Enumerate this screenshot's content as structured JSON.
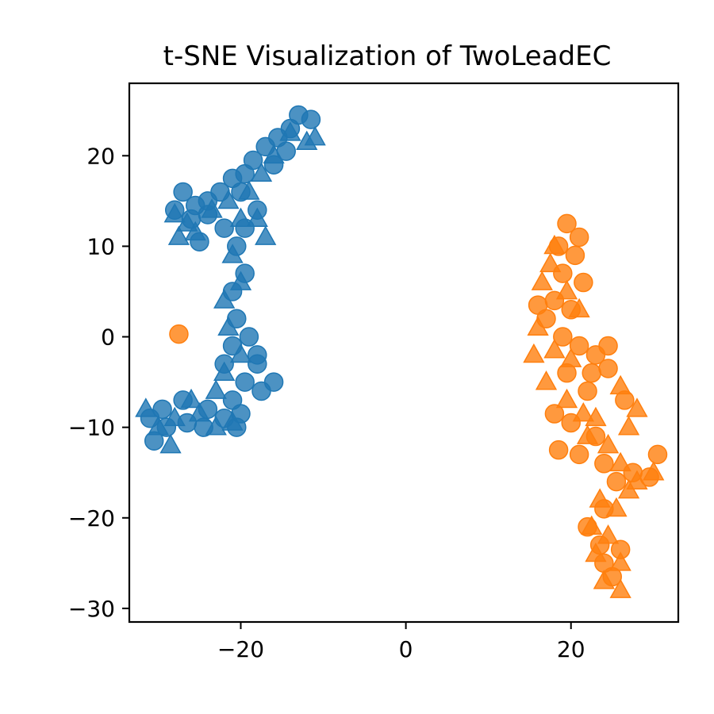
{
  "chart_data": {
    "type": "scatter",
    "title": "t-SNE Visualization of TwoLeadEC",
    "xlabel": "",
    "ylabel": "",
    "xlim": [
      -33.5,
      33
    ],
    "ylim": [
      -31.5,
      28
    ],
    "xticks": [
      -20,
      0,
      20
    ],
    "yticks": [
      -30,
      -20,
      -10,
      0,
      10,
      20
    ],
    "xtick_labels": [
      "−20",
      "0",
      "20"
    ],
    "ytick_labels": [
      "−30",
      "−20",
      "−10",
      "0",
      "10",
      "20"
    ],
    "grid": false,
    "legend": "none",
    "series": [
      {
        "color": "#1f77b4",
        "marker": "circle",
        "points": [
          [
            -13,
            24.5
          ],
          [
            -14,
            23
          ],
          [
            -15.5,
            22
          ],
          [
            -17,
            21
          ],
          [
            -18.5,
            19.5
          ],
          [
            -19.5,
            18
          ],
          [
            -21,
            17.5
          ],
          [
            -22.5,
            16
          ],
          [
            -24,
            15
          ],
          [
            -25.5,
            14.5
          ],
          [
            -27,
            16
          ],
          [
            -28,
            14
          ],
          [
            -26,
            13
          ],
          [
            -24,
            13.5
          ],
          [
            -20,
            16
          ],
          [
            -18,
            14
          ],
          [
            -19.5,
            12
          ],
          [
            -20.5,
            10
          ],
          [
            -19.5,
            7
          ],
          [
            -21,
            5
          ],
          [
            -20.5,
            2
          ],
          [
            -19,
            0
          ],
          [
            -21,
            -1
          ],
          [
            -18,
            -3
          ],
          [
            -19.5,
            -5
          ],
          [
            -17.5,
            -6
          ],
          [
            -21,
            -7
          ],
          [
            -24,
            -8
          ],
          [
            -27,
            -7
          ],
          [
            -29.5,
            -8
          ],
          [
            -31,
            -9
          ],
          [
            -30.5,
            -11.5
          ],
          [
            -29,
            -10
          ],
          [
            -26.5,
            -9.5
          ],
          [
            -24.5,
            -10
          ],
          [
            -22,
            -9
          ],
          [
            -20,
            -8.5
          ],
          [
            -16,
            -5
          ],
          [
            -18,
            -2
          ],
          [
            -22,
            -3
          ],
          [
            -11.5,
            24
          ],
          [
            -14.5,
            20.5
          ],
          [
            -16,
            19
          ],
          [
            -22,
            12
          ],
          [
            -25,
            10.5
          ],
          [
            -20.5,
            -10
          ]
        ]
      },
      {
        "color": "#1f77b4",
        "marker": "triangle",
        "points": [
          [
            -11,
            22
          ],
          [
            -12,
            21.5
          ],
          [
            -16,
            20
          ],
          [
            -17.5,
            18
          ],
          [
            -19,
            16
          ],
          [
            -21.5,
            15
          ],
          [
            -23.5,
            14
          ],
          [
            -26.5,
            12.5
          ],
          [
            -28,
            13.5
          ],
          [
            -25.5,
            11.5
          ],
          [
            -27.5,
            11
          ],
          [
            -20,
            13
          ],
          [
            -17,
            11
          ],
          [
            -18,
            13
          ],
          [
            -21,
            9
          ],
          [
            -20,
            6
          ],
          [
            -22,
            4
          ],
          [
            -21.5,
            1
          ],
          [
            -20,
            -2
          ],
          [
            -22,
            -4
          ],
          [
            -23,
            -6
          ],
          [
            -25,
            -8.5
          ],
          [
            -28,
            -9
          ],
          [
            -30,
            -10
          ],
          [
            -31.5,
            -8
          ],
          [
            -28.5,
            -12
          ],
          [
            -26,
            -7
          ],
          [
            -23,
            -10
          ],
          [
            -21,
            -9.5
          ],
          [
            -14,
            22.5
          ]
        ]
      },
      {
        "color": "#ff7f0e",
        "marker": "circle",
        "points": [
          [
            -27.5,
            0.3
          ],
          [
            19.5,
            12.5
          ],
          [
            21,
            11
          ],
          [
            18.5,
            10
          ],
          [
            20.5,
            9
          ],
          [
            19,
            7
          ],
          [
            21.5,
            6
          ],
          [
            18,
            4
          ],
          [
            20,
            3
          ],
          [
            17,
            2
          ],
          [
            16,
            3.5
          ],
          [
            19,
            0
          ],
          [
            21,
            -1
          ],
          [
            23,
            -2
          ],
          [
            24.5,
            -1
          ],
          [
            22.5,
            -4
          ],
          [
            19.5,
            -4
          ],
          [
            18,
            -8.5
          ],
          [
            20,
            -9.5
          ],
          [
            22,
            -6
          ],
          [
            24.5,
            -3.5
          ],
          [
            26.5,
            -7
          ],
          [
            23,
            -11
          ],
          [
            21,
            -13
          ],
          [
            18.5,
            -12.5
          ],
          [
            24,
            -14
          ],
          [
            25.5,
            -16
          ],
          [
            27.5,
            -15
          ],
          [
            29.5,
            -15.5
          ],
          [
            30.5,
            -13
          ],
          [
            24,
            -19
          ],
          [
            22,
            -21
          ],
          [
            23.5,
            -23
          ],
          [
            26,
            -23.5
          ],
          [
            25,
            -26.5
          ],
          [
            24,
            -25
          ]
        ]
      },
      {
        "color": "#ff7f0e",
        "marker": "triangle",
        "points": [
          [
            18,
            10
          ],
          [
            17.5,
            8
          ],
          [
            16.5,
            6
          ],
          [
            19.5,
            5
          ],
          [
            21,
            3
          ],
          [
            16,
            1
          ],
          [
            18,
            -1.5
          ],
          [
            15.5,
            -2
          ],
          [
            20,
            -2.5
          ],
          [
            17,
            -5
          ],
          [
            19.5,
            -7
          ],
          [
            21.5,
            -8.5
          ],
          [
            23,
            -9
          ],
          [
            22,
            -11
          ],
          [
            24.5,
            -12
          ],
          [
            26,
            -14
          ],
          [
            28,
            -16
          ],
          [
            30,
            -15
          ],
          [
            27,
            -17
          ],
          [
            25.5,
            -19
          ],
          [
            23.5,
            -18
          ],
          [
            22.5,
            -21
          ],
          [
            24.5,
            -22
          ],
          [
            23,
            -24
          ],
          [
            26,
            -25
          ],
          [
            24,
            -27
          ],
          [
            26,
            -28
          ],
          [
            27,
            -10
          ],
          [
            26,
            -5.5
          ],
          [
            28,
            -8
          ]
        ]
      }
    ]
  }
}
